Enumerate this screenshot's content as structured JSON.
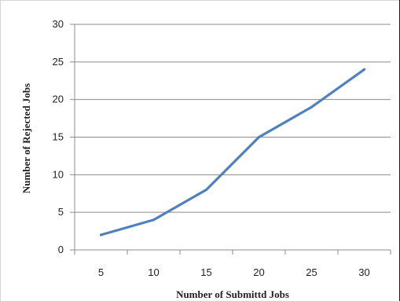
{
  "chart_data": {
    "type": "line",
    "title": "",
    "xlabel": "Number of Submittd  Jobs",
    "ylabel": "Number of Rejected  Jobs",
    "categories": [
      "5",
      "10",
      "15",
      "20",
      "25",
      "30"
    ],
    "series": [
      {
        "values": [
          2,
          4,
          8,
          15,
          19,
          24
        ],
        "color": "#4f81bd"
      }
    ],
    "ylim": [
      0,
      30
    ],
    "yticks": [
      "0",
      "5",
      "10",
      "15",
      "20",
      "25",
      "30"
    ],
    "grid": true,
    "legend": "none"
  }
}
